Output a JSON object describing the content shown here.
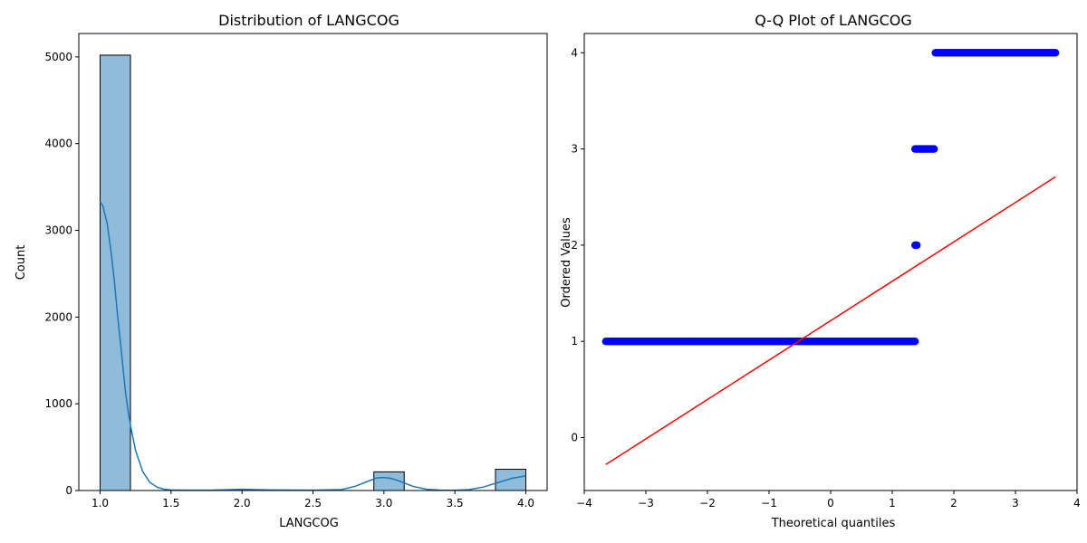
{
  "chart_data": [
    {
      "type": "bar",
      "title": "Distribution of LANGCOG",
      "xlabel": "LANGCOG",
      "ylabel": "Count",
      "xlim": [
        0.85,
        4.15
      ],
      "ylim": [
        0,
        5270
      ],
      "xticks": [
        1.0,
        1.5,
        2.0,
        2.5,
        3.0,
        3.5,
        4.0
      ],
      "xtick_labels": [
        "1.0",
        "1.5",
        "2.0",
        "2.5",
        "3.0",
        "3.5",
        "4.0"
      ],
      "yticks": [
        0,
        1000,
        2000,
        3000,
        4000,
        5000
      ],
      "ytick_labels": [
        "0",
        "1000",
        "2000",
        "3000",
        "4000",
        "5000"
      ],
      "bins": [
        {
          "x0": 1.0,
          "x1": 1.214,
          "count": 5020
        },
        {
          "x0": 2.929,
          "x1": 3.143,
          "count": 215
        },
        {
          "x0": 3.786,
          "x1": 4.0,
          "count": 245
        }
      ],
      "kde": {
        "x": [
          1.0,
          1.02,
          1.05,
          1.08,
          1.1,
          1.12,
          1.15,
          1.18,
          1.2,
          1.22,
          1.25,
          1.3,
          1.35,
          1.4,
          1.45,
          1.5,
          1.6,
          1.8,
          2.0,
          2.2,
          2.5,
          2.7,
          2.8,
          2.9,
          2.95,
          3.0,
          3.05,
          3.1,
          3.2,
          3.3,
          3.4,
          3.5,
          3.6,
          3.7,
          3.8,
          3.9,
          4.0
        ],
        "y": [
          3330,
          3280,
          3080,
          2720,
          2420,
          2070,
          1600,
          1120,
          890,
          700,
          460,
          220,
          95,
          40,
          15,
          6,
          4,
          5,
          15,
          6,
          4,
          10,
          50,
          115,
          145,
          150,
          140,
          115,
          50,
          15,
          4,
          3,
          10,
          40,
          90,
          140,
          170
        ]
      },
      "bar_color": "#8fbcdb",
      "kde_color": "#1f77b4"
    },
    {
      "type": "scatter",
      "title": "Q-Q Plot of LANGCOG",
      "xlabel": "Theoretical quantiles",
      "ylabel": "Ordered Values",
      "xlim": [
        -4.0,
        4.0
      ],
      "ylim": [
        -0.55,
        4.2
      ],
      "xticks": [
        -4,
        -3,
        -2,
        -1,
        0,
        1,
        2,
        3,
        4
      ],
      "xtick_labels": [
        "−4",
        "−3",
        "−2",
        "−1",
        "0",
        "1",
        "2",
        "3",
        "4"
      ],
      "yticks": [
        0,
        1,
        2,
        3,
        4
      ],
      "ytick_labels": [
        "0",
        "1",
        "2",
        "3",
        "4"
      ],
      "point_groups": [
        {
          "value": 1,
          "x_start": -3.65,
          "x_end": 1.37
        },
        {
          "value": 2,
          "x_start": 1.37,
          "x_end": 1.4
        },
        {
          "value": 3,
          "x_start": 1.37,
          "x_end": 1.68
        },
        {
          "value": 4,
          "x_start": 1.7,
          "x_end": 3.65
        }
      ],
      "fit_line": {
        "x": [
          -3.65,
          3.65
        ],
        "y": [
          -0.28,
          2.71
        ]
      },
      "point_color": "#0000ff",
      "line_color": "#ff0000"
    }
  ]
}
